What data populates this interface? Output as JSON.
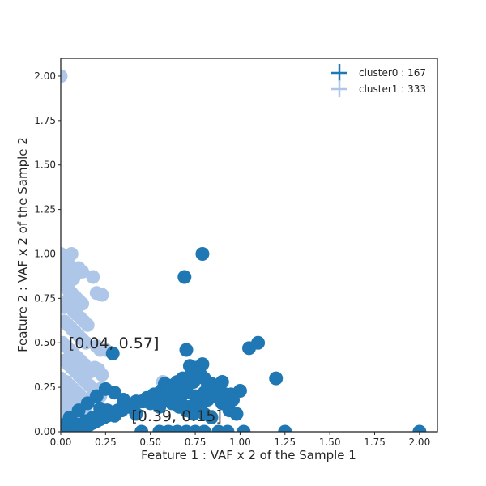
{
  "chart_data": {
    "type": "scatter",
    "title": "",
    "xlabel": "Feature 1 : VAF x 2 of the Sample 1",
    "ylabel": "Feature 2 : VAF x 2 of the Sample 2",
    "xlim": [
      0,
      2.1
    ],
    "ylim": [
      0,
      2.1
    ],
    "x_ticks": [
      0.0,
      0.25,
      0.5,
      0.75,
      1.0,
      1.25,
      1.5,
      1.75,
      2.0
    ],
    "y_ticks": [
      0.0,
      0.25,
      0.5,
      0.75,
      1.0,
      1.25,
      1.5,
      1.75,
      2.0
    ],
    "x_tick_labels": [
      "0.00",
      "0.25",
      "0.50",
      "0.75",
      "1.00",
      "1.25",
      "1.50",
      "1.75",
      "2.00"
    ],
    "y_tick_labels": [
      "0.00",
      "0.25",
      "0.50",
      "0.75",
      "1.00",
      "1.25",
      "1.50",
      "1.75",
      "2.00"
    ],
    "grid": false,
    "legend_position": "top-right",
    "legend": [
      {
        "label": "cluster0 : 167",
        "color": "#1f77b4"
      },
      {
        "label": "cluster1 : 333",
        "color": "#aec7e8"
      }
    ],
    "annotations": [
      {
        "text": "[0.04, 0.57]",
        "x": 0.04,
        "y": 0.5
      },
      {
        "text": "[0.39, 0.15]",
        "x": 0.39,
        "y": 0.09
      }
    ],
    "series": [
      {
        "name": "cluster1",
        "color": "#aec7e8",
        "x": [
          0.0,
          0.0,
          0.02,
          0.04,
          0.06,
          0.01,
          0.03,
          0.05,
          0.07,
          0.02,
          0.04,
          0.08,
          0.1,
          0.12,
          0.18,
          0.2,
          0.23,
          0.04,
          0.06,
          0.08,
          0.1,
          0.12,
          0.05,
          0.07,
          0.09,
          0.11,
          0.13,
          0.15,
          0.02,
          0.04,
          0.06,
          0.08,
          0.1,
          0.12,
          0.14,
          0.2,
          0.22,
          0.01,
          0.03,
          0.05,
          0.07,
          0.09,
          0.11,
          0.13,
          0.15,
          0.17,
          0.19,
          0.21,
          0.23,
          0.25,
          0.02,
          0.04,
          0.06,
          0.08,
          0.1,
          0.12,
          0.14,
          0.16,
          0.18,
          0.2,
          0.22,
          0.0,
          0.03,
          0.05,
          0.07,
          0.09,
          0.11,
          0.13,
          0.15,
          0.02,
          0.04,
          0.06,
          0.08,
          0.1,
          0.12,
          0.14,
          0.16,
          0.0,
          0.02,
          0.04,
          0.06,
          0.08,
          0.1,
          0.12,
          0.14,
          0.16,
          0.18,
          0.2,
          0.22,
          0.01,
          0.03,
          0.05,
          0.07,
          0.09,
          0.11,
          0.57,
          0.02,
          0.04
        ],
        "y": [
          2.0,
          1.0,
          0.98,
          0.95,
          1.0,
          0.92,
          0.9,
          0.88,
          0.86,
          0.84,
          0.82,
          0.88,
          0.92,
          0.9,
          0.87,
          0.78,
          0.77,
          0.8,
          0.78,
          0.76,
          0.74,
          0.72,
          0.7,
          0.68,
          0.66,
          0.64,
          0.62,
          0.6,
          0.62,
          0.6,
          0.58,
          0.56,
          0.54,
          0.52,
          0.5,
          0.48,
          0.46,
          0.5,
          0.48,
          0.46,
          0.44,
          0.42,
          0.4,
          0.38,
          0.36,
          0.34,
          0.36,
          0.35,
          0.32,
          0.46,
          0.4,
          0.38,
          0.36,
          0.34,
          0.32,
          0.3,
          0.28,
          0.26,
          0.24,
          0.22,
          0.2,
          0.3,
          0.28,
          0.26,
          0.24,
          0.22,
          0.2,
          0.18,
          0.16,
          0.22,
          0.2,
          0.18,
          0.16,
          0.14,
          0.12,
          0.1,
          0.08,
          0.12,
          0.1,
          0.08,
          0.06,
          0.05,
          0.04,
          0.03,
          0.02,
          0.18,
          0.2,
          0.22,
          0.24,
          0.15,
          0.13,
          0.11,
          0.09,
          0.07,
          0.05,
          0.28,
          0.7,
          0.74
        ]
      },
      {
        "name": "cluster0",
        "color": "#1f77b4",
        "x": [
          0.79,
          0.69,
          1.1,
          1.05,
          0.7,
          0.29,
          1.2,
          0.72,
          0.75,
          0.79,
          0.68,
          0.65,
          0.6,
          0.58,
          0.62,
          0.7,
          0.75,
          0.8,
          0.85,
          0.9,
          0.95,
          1.0,
          0.55,
          0.5,
          0.45,
          0.4,
          0.35,
          0.3,
          0.25,
          0.2,
          0.15,
          0.1,
          0.05,
          0.22,
          0.26,
          0.3,
          0.34,
          0.38,
          0.42,
          0.46,
          0.5,
          0.54,
          0.58,
          0.62,
          0.66,
          0.7,
          0.74,
          0.78,
          0.82,
          0.86,
          0.9,
          0.94,
          0.98,
          0.45,
          0.55,
          0.6,
          0.65,
          0.7,
          0.75,
          0.8,
          0.88,
          0.93,
          1.02,
          1.25,
          2.0,
          0.1,
          0.14,
          0.18,
          0.22,
          0.26,
          0.12,
          0.16,
          0.2,
          0.24,
          0.28,
          0.32,
          0.36,
          0.08,
          0.12,
          0.16,
          0.2,
          0.24,
          0.28,
          0.32,
          0.05,
          0.09,
          0.13,
          0.17,
          0.21,
          0.25,
          0.02,
          0.06,
          0.1,
          0.14,
          0.18,
          0.22,
          0.26,
          0.3,
          0.34,
          0.38,
          0.42,
          0.48,
          0.52,
          0.56,
          0.6,
          0.64,
          0.68,
          0.72,
          0.76,
          0.8,
          0.84,
          0.88,
          0.92,
          0.96,
          0.66,
          0.7,
          0.74,
          0.78,
          0.82,
          0.86,
          0.9,
          0.72,
          0.76,
          0.8,
          0.84,
          0.6,
          0.64,
          0.68
        ],
        "y": [
          1.0,
          0.87,
          0.5,
          0.47,
          0.46,
          0.44,
          0.3,
          0.37,
          0.36,
          0.38,
          0.3,
          0.28,
          0.26,
          0.27,
          0.24,
          0.22,
          0.2,
          0.22,
          0.25,
          0.28,
          0.21,
          0.23,
          0.14,
          0.16,
          0.17,
          0.15,
          0.18,
          0.22,
          0.24,
          0.2,
          0.16,
          0.12,
          0.08,
          0.13,
          0.11,
          0.09,
          0.12,
          0.14,
          0.1,
          0.17,
          0.19,
          0.21,
          0.18,
          0.16,
          0.14,
          0.12,
          0.1,
          0.14,
          0.18,
          0.2,
          0.16,
          0.12,
          0.1,
          0.0,
          0.0,
          0.0,
          0.0,
          0.0,
          0.0,
          0.0,
          0.0,
          0.0,
          0.0,
          0.0,
          0.0,
          0.04,
          0.06,
          0.08,
          0.1,
          0.12,
          0.02,
          0.04,
          0.06,
          0.08,
          0.1,
          0.12,
          0.14,
          0.0,
          0.02,
          0.04,
          0.06,
          0.08,
          0.1,
          0.12,
          0.0,
          0.02,
          0.04,
          0.06,
          0.08,
          0.1,
          0.04,
          0.06,
          0.01,
          0.03,
          0.05,
          0.07,
          0.09,
          0.11,
          0.13,
          0.15,
          0.17,
          0.19,
          0.21,
          0.23,
          0.25,
          0.27,
          0.29,
          0.31,
          0.33,
          0.3,
          0.27,
          0.24,
          0.21,
          0.18,
          0.2,
          0.24,
          0.28,
          0.32,
          0.26,
          0.22,
          0.18,
          0.14,
          0.12,
          0.1,
          0.08,
          0.22,
          0.18,
          0.15
        ]
      }
    ]
  }
}
